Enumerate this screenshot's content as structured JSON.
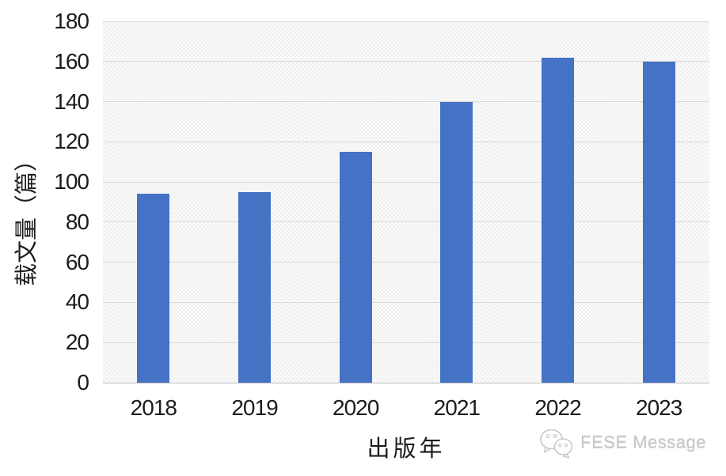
{
  "chart_data": {
    "type": "bar",
    "categories": [
      "2018",
      "2019",
      "2020",
      "2021",
      "2022",
      "2023"
    ],
    "values": [
      94,
      95,
      115,
      140,
      162,
      160
    ],
    "title": "",
    "xlabel": "出版年",
    "ylabel": "载文量（篇）",
    "ylim": [
      0,
      180
    ],
    "ytick_step": 20,
    "ytick_labels": [
      "0",
      "20",
      "40",
      "60",
      "80",
      "100",
      "120",
      "140",
      "160",
      "180"
    ],
    "grid": true,
    "legend": false,
    "bar_color": "#4472C4",
    "plot_bg_color": "#F1F1F1",
    "gridline_color": "#D9D9D9",
    "axis_line_color": "#C3C3C3",
    "tick_label_color": "#1C1C1C"
  },
  "watermark": {
    "text": "FESE Message",
    "icon": "wechat-icon",
    "color": "#C5C5C5"
  }
}
